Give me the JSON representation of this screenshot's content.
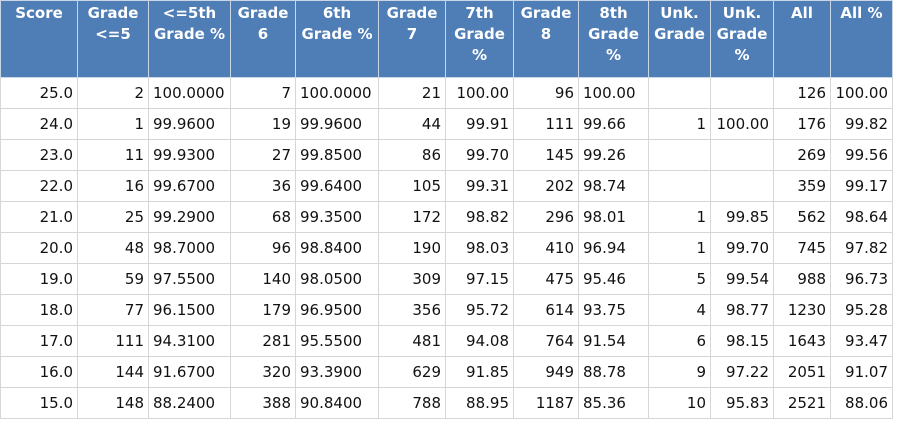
{
  "colors": {
    "header_bg": "#4f7db5",
    "header_text": "#ffffff"
  },
  "columns": [
    {
      "label": "Score",
      "type": "count"
    },
    {
      "label": "Grade <=5",
      "type": "count"
    },
    {
      "label": "<=5th Grade %",
      "type": "pct"
    },
    {
      "label": "Grade 6",
      "type": "count"
    },
    {
      "label": "6th Grade %",
      "type": "pct"
    },
    {
      "label": "Grade 7",
      "type": "count"
    },
    {
      "label": "7th Grade %",
      "type": "pctr"
    },
    {
      "label": "Grade 8",
      "type": "count"
    },
    {
      "label": "8th Grade %",
      "type": "pct"
    },
    {
      "label": "Unk. Grade",
      "type": "count"
    },
    {
      "label": "Unk. Grade %",
      "type": "pctr"
    },
    {
      "label": "All",
      "type": "count"
    },
    {
      "label": "All %",
      "type": "pctr"
    }
  ],
  "rows": [
    [
      "25.0",
      "2",
      "100.0000",
      "7",
      "100.0000",
      "21",
      "100.00",
      "96",
      "100.00",
      "",
      "",
      "126",
      "100.00"
    ],
    [
      "24.0",
      "1",
      "99.9600",
      "19",
      "99.9600",
      "44",
      "99.91",
      "111",
      "99.66",
      "1",
      "100.00",
      "176",
      "99.82"
    ],
    [
      "23.0",
      "11",
      "99.9300",
      "27",
      "99.8500",
      "86",
      "99.70",
      "145",
      "99.26",
      "",
      "",
      "269",
      "99.56"
    ],
    [
      "22.0",
      "16",
      "99.6700",
      "36",
      "99.6400",
      "105",
      "99.31",
      "202",
      "98.74",
      "",
      "",
      "359",
      "99.17"
    ],
    [
      "21.0",
      "25",
      "99.2900",
      "68",
      "99.3500",
      "172",
      "98.82",
      "296",
      "98.01",
      "1",
      "99.85",
      "562",
      "98.64"
    ],
    [
      "20.0",
      "48",
      "98.7000",
      "96",
      "98.8400",
      "190",
      "98.03",
      "410",
      "96.94",
      "1",
      "99.70",
      "745",
      "97.82"
    ],
    [
      "19.0",
      "59",
      "97.5500",
      "140",
      "98.0500",
      "309",
      "97.15",
      "475",
      "95.46",
      "5",
      "99.54",
      "988",
      "96.73"
    ],
    [
      "18.0",
      "77",
      "96.1500",
      "179",
      "96.9500",
      "356",
      "95.72",
      "614",
      "93.75",
      "4",
      "98.77",
      "1230",
      "95.28"
    ],
    [
      "17.0",
      "111",
      "94.3100",
      "281",
      "95.5500",
      "481",
      "94.08",
      "764",
      "91.54",
      "6",
      "98.15",
      "1643",
      "93.47"
    ],
    [
      "16.0",
      "144",
      "91.6700",
      "320",
      "93.3900",
      "629",
      "91.85",
      "949",
      "88.78",
      "9",
      "97.22",
      "2051",
      "91.07"
    ],
    [
      "15.0",
      "148",
      "88.2400",
      "388",
      "90.8400",
      "788",
      "88.95",
      "1187",
      "85.36",
      "10",
      "95.83",
      "2521",
      "88.06"
    ]
  ]
}
